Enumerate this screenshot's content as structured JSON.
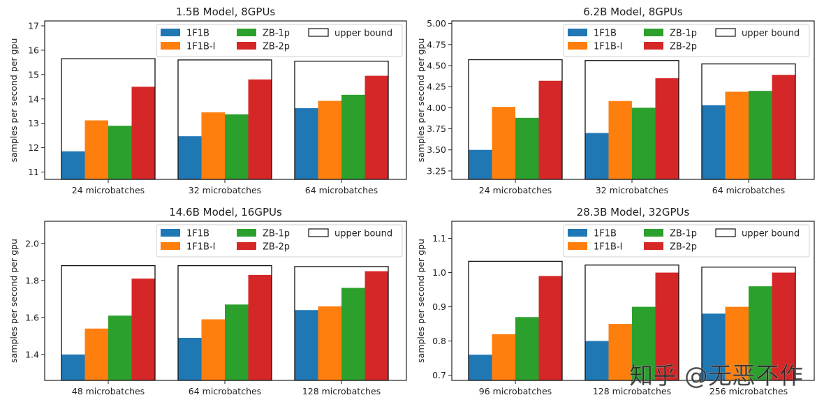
{
  "colors": {
    "1F1B": "#1f77b4",
    "1F1B-I": "#ff7f0e",
    "ZB-1p": "#2ca02c",
    "ZB-2p": "#d62728"
  },
  "legend": {
    "entries": [
      "1F1B",
      "1F1B-I",
      "ZB-1p",
      "ZB-2p"
    ],
    "upper_bound_label": "upper bound"
  },
  "watermark": "知乎 @无恶不作",
  "chart_data": [
    {
      "type": "bar",
      "title": "1.5B Model, 8GPUs",
      "ylabel": "samples per second per gpu",
      "ylim": [
        10.7,
        17.2
      ],
      "yticks": [
        "11",
        "12",
        "13",
        "14",
        "15",
        "16",
        "17"
      ],
      "categories": [
        "24 microbatches",
        "32 microbatches",
        "64 microbatches"
      ],
      "series": [
        {
          "name": "1F1B",
          "values": [
            11.85,
            12.47,
            13.62
          ]
        },
        {
          "name": "1F1B-I",
          "values": [
            13.12,
            13.45,
            13.92
          ]
        },
        {
          "name": "ZB-1p",
          "values": [
            12.9,
            13.37,
            14.17
          ]
        },
        {
          "name": "ZB-2p",
          "values": [
            14.5,
            14.8,
            14.95
          ]
        }
      ],
      "upper_bound": [
        15.65,
        15.6,
        15.55
      ]
    },
    {
      "type": "bar",
      "title": "6.2B Model, 8GPUs",
      "ylabel": "samples per second per gpu",
      "ylim": [
        3.15,
        5.03
      ],
      "yticks": [
        "3.25",
        "3.50",
        "3.75",
        "4.00",
        "4.25",
        "4.50",
        "4.75",
        "5.00"
      ],
      "categories": [
        "24 microbatches",
        "32 microbatches",
        "64 microbatches"
      ],
      "series": [
        {
          "name": "1F1B",
          "values": [
            3.5,
            3.7,
            4.03
          ]
        },
        {
          "name": "1F1B-I",
          "values": [
            4.01,
            4.08,
            4.19
          ]
        },
        {
          "name": "ZB-1p",
          "values": [
            3.88,
            4.0,
            4.2
          ]
        },
        {
          "name": "ZB-2p",
          "values": [
            4.32,
            4.35,
            4.39
          ]
        }
      ],
      "upper_bound": [
        4.57,
        4.56,
        4.52
      ]
    },
    {
      "type": "bar",
      "title": "14.6B Model, 16GPUs",
      "ylabel": "samples per second per gpu",
      "ylim": [
        1.26,
        2.12
      ],
      "yticks": [
        "1.4",
        "1.6",
        "1.8",
        "2.0"
      ],
      "categories": [
        "48 microbatches",
        "64 microbatches",
        "128 microbatches"
      ],
      "series": [
        {
          "name": "1F1B",
          "values": [
            1.4,
            1.49,
            1.64
          ]
        },
        {
          "name": "1F1B-I",
          "values": [
            1.54,
            1.59,
            1.66
          ]
        },
        {
          "name": "ZB-1p",
          "values": [
            1.61,
            1.67,
            1.76
          ]
        },
        {
          "name": "ZB-2p",
          "values": [
            1.81,
            1.83,
            1.85
          ]
        }
      ],
      "upper_bound": [
        1.88,
        1.88,
        1.875
      ]
    },
    {
      "type": "bar",
      "title": "28.3B Model, 32GPUs",
      "ylabel": "samples per second per gpu",
      "ylim": [
        0.685,
        1.15
      ],
      "yticks": [
        "0.7",
        "0.8",
        "0.9",
        "1.0",
        "1.1"
      ],
      "categories": [
        "96 microbatches",
        "128 microbatches",
        "256 microbatches"
      ],
      "series": [
        {
          "name": "1F1B",
          "values": [
            0.76,
            0.8,
            0.88
          ]
        },
        {
          "name": "1F1B-I",
          "values": [
            0.82,
            0.85,
            0.9
          ]
        },
        {
          "name": "ZB-1p",
          "values": [
            0.87,
            0.9,
            0.96
          ]
        },
        {
          "name": "ZB-2p",
          "values": [
            0.99,
            1.0,
            1.0
          ]
        }
      ],
      "upper_bound": [
        1.033,
        1.022,
        1.016
      ]
    }
  ]
}
